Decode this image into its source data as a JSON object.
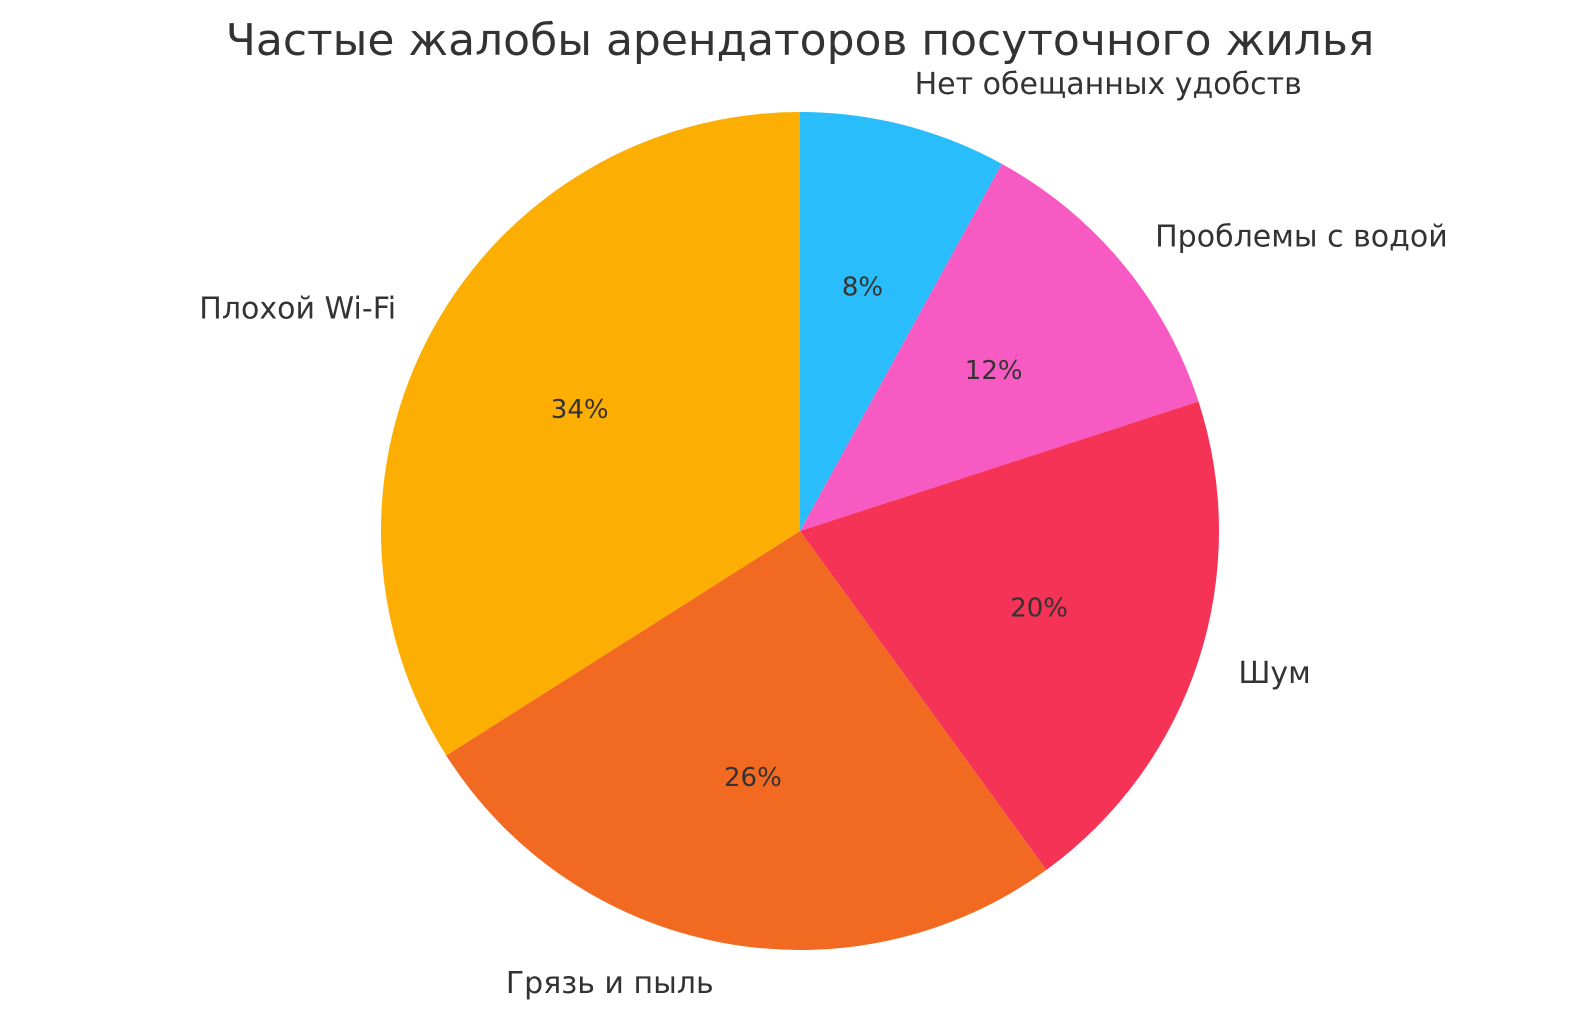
{
  "chart_data": {
    "type": "pie",
    "title": "Частые жалобы арендаторов посуточного жилья",
    "start_angle_deg": 90,
    "direction": "clockwise",
    "slices": [
      {
        "label": "Нет обещанных удобств",
        "value": 8,
        "pct_label": "8%",
        "color": "#29BDFB"
      },
      {
        "label": "Проблемы с водой",
        "value": 12,
        "pct_label": "12%",
        "color": "#F85AC3"
      },
      {
        "label": "Шум",
        "value": 20,
        "pct_label": "20%",
        "color": "#F53357"
      },
      {
        "label": "Грязь и пыль",
        "value": 26,
        "pct_label": "26%",
        "color": "#F26A22"
      },
      {
        "label": "Плохой Wi-Fi",
        "value": 34,
        "pct_label": "34%",
        "color": "#FDAE02"
      }
    ]
  }
}
